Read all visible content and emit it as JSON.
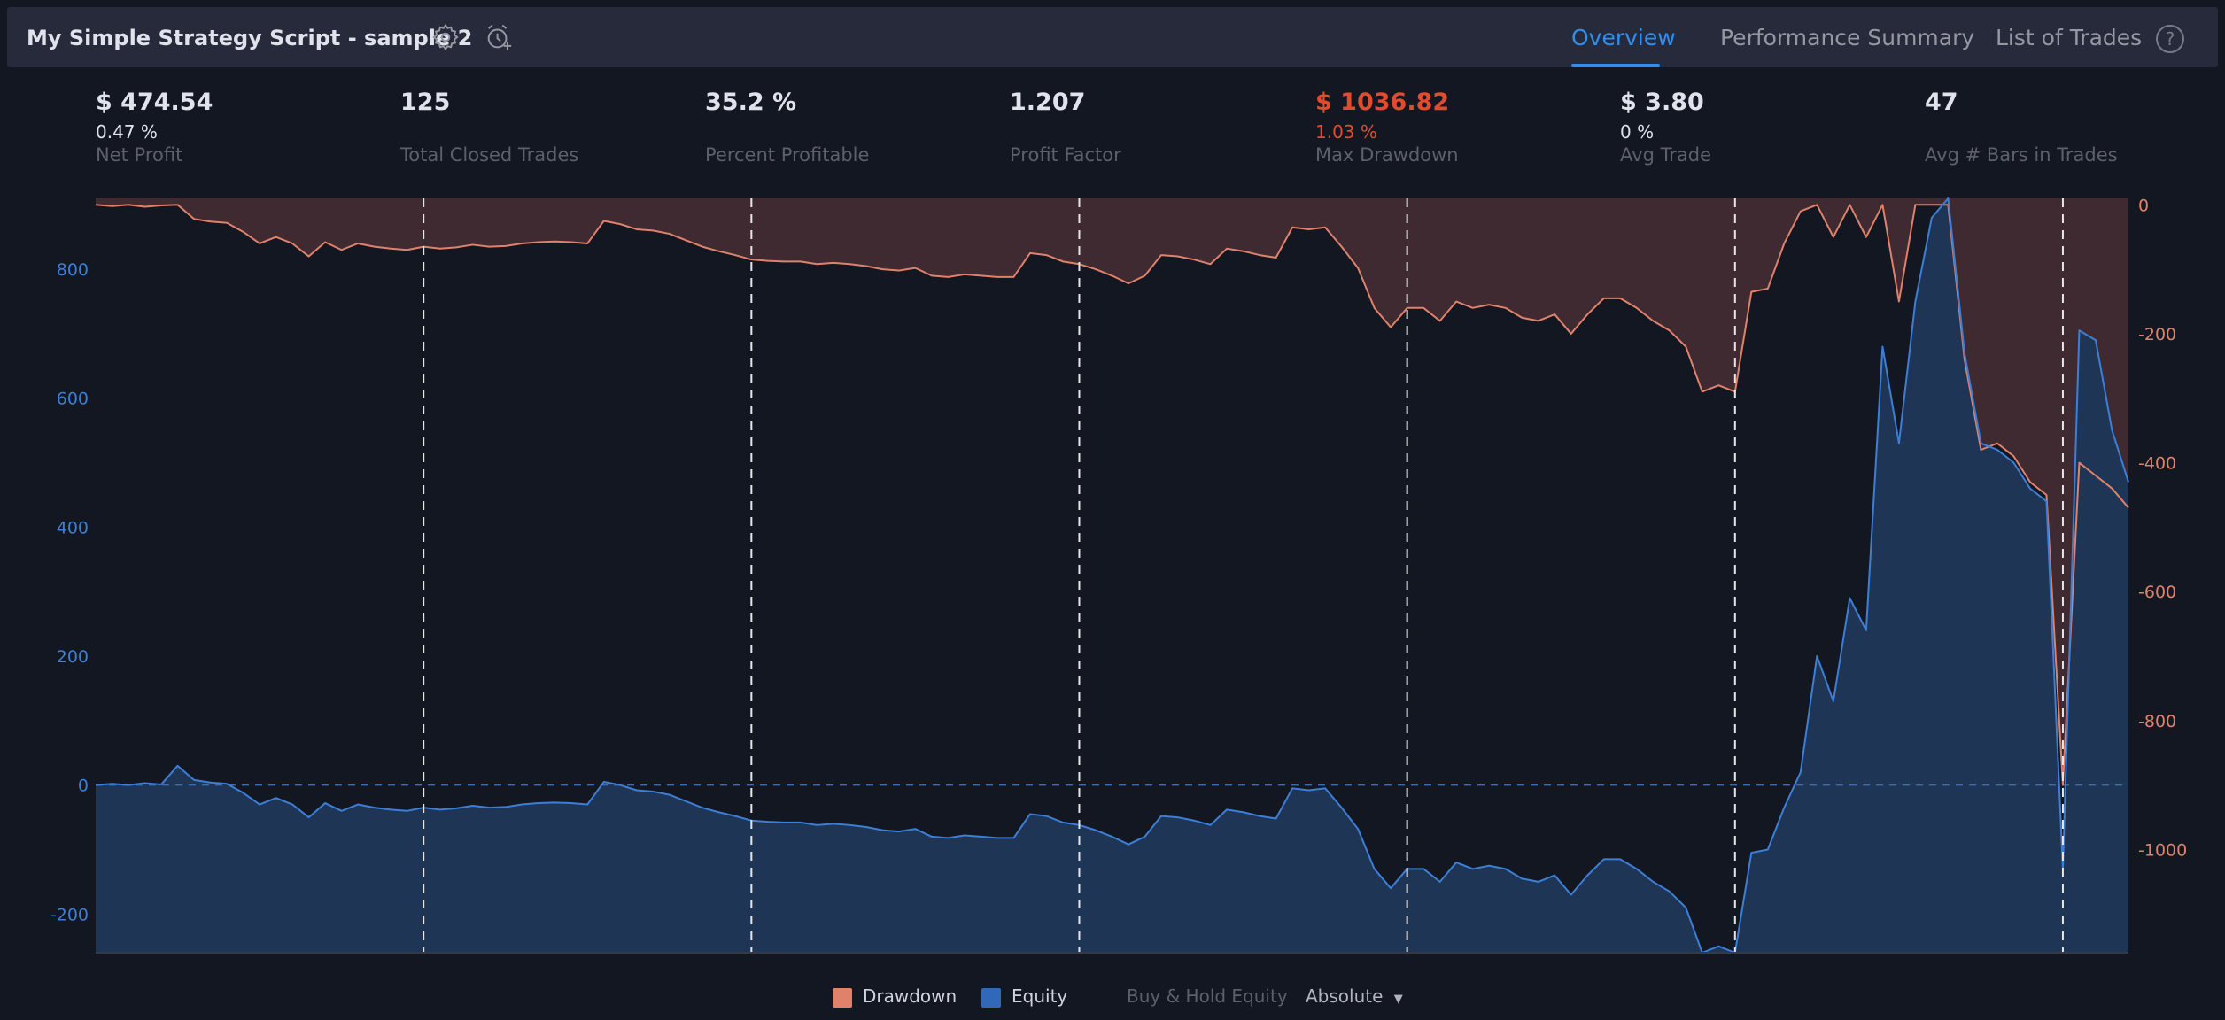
{
  "header": {
    "title": "My Simple Strategy Script - sample 2",
    "settings_icon": "gear-icon",
    "alert_icon": "alarm-clock-plus-icon",
    "tabs": [
      {
        "label": "Overview",
        "active": true
      },
      {
        "label": "Performance Summary",
        "active": false
      },
      {
        "label": "List of Trades",
        "active": false
      }
    ],
    "help_label": "?"
  },
  "stats": [
    {
      "value": "$ 474.54",
      "percent": "0.47 %",
      "label": "Net Profit"
    },
    {
      "value": "125",
      "percent": "",
      "label": "Total Closed Trades"
    },
    {
      "value": "35.2 %",
      "percent": "",
      "label": "Percent Profitable"
    },
    {
      "value": "1.207",
      "percent": "",
      "label": "Profit Factor"
    },
    {
      "value": "$ 1036.82",
      "percent": "1.03 %",
      "label": "Max Drawdown",
      "color": "#e14b2e"
    },
    {
      "value": "$ 3.80",
      "percent": "0 %",
      "label": "Avg Trade"
    },
    {
      "value": "47",
      "percent": "",
      "label": "Avg # Bars in Trades"
    }
  ],
  "legend": {
    "drawdown": "Drawdown",
    "equity": "Equity",
    "buy_hold": "Buy & Hold Equity",
    "mode": "Absolute"
  },
  "colors": {
    "drawdown": "#e0826b",
    "drawdown_fill": "#3e2a30",
    "equity": "#3d7fd6",
    "equity_fill": "#1e3556",
    "accent": "#2f8ff0"
  },
  "chart_data": {
    "type": "area",
    "x_ticks": [
      "20",
      "40",
      "60",
      "80",
      "100",
      "120"
    ],
    "equity_axis_ticks": [
      "800",
      "600",
      "400",
      "200",
      "0",
      "-200"
    ],
    "drawdown_axis_ticks": [
      "0",
      "-200",
      "-400",
      "-600",
      "-800",
      "-1000"
    ],
    "equity_ylim": [
      -260,
      910
    ],
    "drawdown_ylim": [
      -1160,
      10
    ],
    "xlim": [
      0,
      124
    ],
    "vertical_gridlines_at": [
      20,
      40,
      60,
      80,
      100,
      120
    ],
    "series": [
      {
        "name": "Equity",
        "axis": "left",
        "x": [
          0,
          1,
          2,
          3,
          4,
          5,
          6,
          7,
          8,
          9,
          10,
          11,
          12,
          13,
          14,
          15,
          16,
          17,
          18,
          19,
          20,
          21,
          22,
          23,
          24,
          25,
          26,
          27,
          28,
          29,
          30,
          31,
          32,
          33,
          34,
          35,
          36,
          37,
          38,
          39,
          40,
          41,
          42,
          43,
          44,
          45,
          46,
          47,
          48,
          49,
          50,
          51,
          52,
          53,
          54,
          55,
          56,
          57,
          58,
          59,
          60,
          61,
          62,
          63,
          64,
          65,
          66,
          67,
          68,
          69,
          70,
          71,
          72,
          73,
          74,
          75,
          76,
          77,
          78,
          79,
          80,
          81,
          82,
          83,
          84,
          85,
          86,
          87,
          88,
          89,
          90,
          91,
          92,
          93,
          94,
          95,
          96,
          97,
          98,
          99,
          100,
          101,
          102,
          103,
          104,
          105,
          106,
          107,
          108,
          109,
          110,
          111,
          112,
          113,
          114,
          115,
          116,
          117,
          118,
          119,
          120,
          121,
          122,
          123,
          124
        ],
        "values": [
          0,
          2,
          0,
          3,
          1,
          30,
          8,
          4,
          2,
          -12,
          -30,
          -20,
          -30,
          -50,
          -28,
          -40,
          -30,
          -35,
          -38,
          -40,
          -35,
          -38,
          -36,
          -32,
          -35,
          -34,
          -30,
          -28,
          -27,
          -28,
          -30,
          5,
          0,
          -8,
          -10,
          -15,
          -25,
          -35,
          -42,
          -48,
          -55,
          -57,
          -58,
          -58,
          -62,
          -60,
          -62,
          -65,
          -70,
          -72,
          -68,
          -80,
          -82,
          -78,
          -80,
          -82,
          -82,
          -45,
          -48,
          -58,
          -62,
          -70,
          -80,
          -92,
          -80,
          -48,
          -50,
          -55,
          -62,
          -38,
          -42,
          -48,
          -52,
          -5,
          -8,
          -5,
          -35,
          -68,
          -130,
          -160,
          -130,
          -130,
          -150,
          -120,
          -130,
          -125,
          -130,
          -145,
          -150,
          -140,
          -170,
          -140,
          -115,
          -115,
          -130,
          -150,
          -165,
          -190,
          -260,
          -250,
          -260,
          -105,
          -100,
          -35,
          20,
          200,
          130,
          290,
          240,
          680,
          530,
          750,
          880,
          910,
          670,
          530,
          520,
          500,
          460,
          440,
          -130,
          705,
          690,
          550,
          470
        ]
      },
      {
        "name": "Drawdown",
        "axis": "right",
        "x": [
          0,
          1,
          2,
          3,
          4,
          5,
          6,
          7,
          8,
          9,
          10,
          11,
          12,
          13,
          14,
          15,
          16,
          17,
          18,
          19,
          20,
          21,
          22,
          23,
          24,
          25,
          26,
          27,
          28,
          29,
          30,
          31,
          32,
          33,
          34,
          35,
          36,
          37,
          38,
          39,
          40,
          41,
          42,
          43,
          44,
          45,
          46,
          47,
          48,
          49,
          50,
          51,
          52,
          53,
          54,
          55,
          56,
          57,
          58,
          59,
          60,
          61,
          62,
          63,
          64,
          65,
          66,
          67,
          68,
          69,
          70,
          71,
          72,
          73,
          74,
          75,
          76,
          77,
          78,
          79,
          80,
          81,
          82,
          83,
          84,
          85,
          86,
          87,
          88,
          89,
          90,
          91,
          92,
          93,
          94,
          95,
          96,
          97,
          98,
          99,
          100,
          101,
          102,
          103,
          104,
          105,
          106,
          107,
          108,
          109,
          110,
          111,
          112,
          113,
          114,
          115,
          116,
          117,
          118,
          119,
          120,
          121,
          122,
          123,
          124
        ],
        "values": [
          0,
          -2,
          0,
          -3,
          -1,
          0,
          -22,
          -26,
          -28,
          -42,
          -60,
          -50,
          -60,
          -80,
          -58,
          -70,
          -60,
          -65,
          -68,
          -70,
          -65,
          -68,
          -66,
          -62,
          -65,
          -64,
          -60,
          -58,
          -57,
          -58,
          -60,
          -25,
          -30,
          -38,
          -40,
          -45,
          -55,
          -65,
          -72,
          -78,
          -85,
          -87,
          -88,
          -88,
          -92,
          -90,
          -92,
          -95,
          -100,
          -102,
          -98,
          -110,
          -112,
          -108,
          -110,
          -112,
          -112,
          -75,
          -78,
          -88,
          -92,
          -100,
          -110,
          -122,
          -110,
          -78,
          -80,
          -85,
          -92,
          -68,
          -72,
          -78,
          -82,
          -35,
          -38,
          -35,
          -65,
          -98,
          -160,
          -190,
          -160,
          -160,
          -180,
          -150,
          -160,
          -155,
          -160,
          -175,
          -180,
          -170,
          -200,
          -170,
          -145,
          -145,
          -160,
          -180,
          -195,
          -220,
          -290,
          -280,
          -290,
          -135,
          -130,
          -60,
          -10,
          0,
          -50,
          0,
          -50,
          0,
          -150,
          0,
          0,
          0,
          -240,
          -380,
          -370,
          -390,
          -430,
          -450,
          -900,
          -400,
          -420,
          -440,
          -470
        ]
      }
    ]
  }
}
